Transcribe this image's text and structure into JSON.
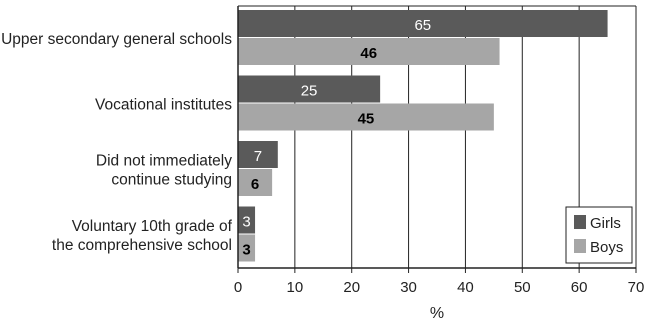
{
  "chart_data": {
    "type": "bar",
    "orientation": "horizontal",
    "categories": [
      [
        "Upper secondary general schools"
      ],
      [
        "Vocational institutes"
      ],
      [
        "Did not immediately",
        "continue studying"
      ],
      [
        "Voluntary 10th grade of",
        "the comprehensive school"
      ]
    ],
    "series": [
      {
        "name": "Girls",
        "values": [
          65,
          25,
          7,
          3
        ],
        "color": "#5a5a5a",
        "label_color": "#ffffff"
      },
      {
        "name": "Boys",
        "values": [
          46,
          45,
          6,
          3
        ],
        "color": "#a6a6a6",
        "label_color": "#000000"
      }
    ],
    "xlabel": "%",
    "xlim": [
      0,
      70
    ],
    "xticks": [
      0,
      10,
      20,
      30,
      40,
      50,
      60,
      70
    ],
    "grid": true,
    "legend_position": "bottom-right"
  }
}
